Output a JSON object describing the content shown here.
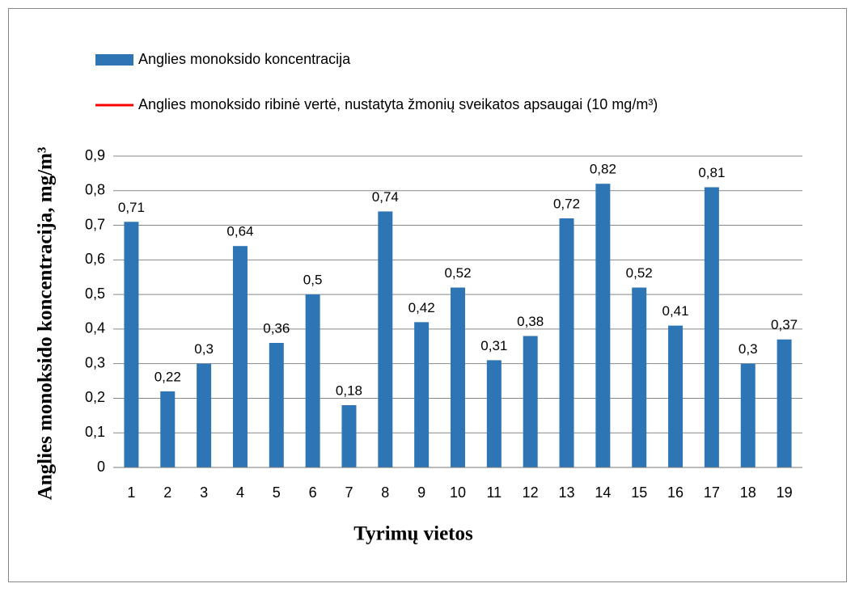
{
  "chart_data": {
    "type": "bar",
    "xlabel": "Tyrimų vietos",
    "ylabel": "Anglies monoksido koncentracija,  mg/m³",
    "categories": [
      "1",
      "2",
      "3",
      "4",
      "5",
      "6",
      "7",
      "8",
      "9",
      "10",
      "11",
      "12",
      "13",
      "14",
      "15",
      "16",
      "17",
      "18",
      "19"
    ],
    "series": [
      {
        "name": "Anglies monoksido koncentracija",
        "color": "#2e75b6",
        "values": [
          0.71,
          0.22,
          0.3,
          0.64,
          0.36,
          0.5,
          0.18,
          0.74,
          0.42,
          0.52,
          0.31,
          0.38,
          0.72,
          0.82,
          0.52,
          0.41,
          0.81,
          0.3,
          0.37
        ],
        "value_labels": [
          "0,71",
          "0,22",
          "0,3",
          "0,64",
          "0,36",
          "0,5",
          "0,18",
          "0,74",
          "0,42",
          "0,52",
          "0,31",
          "0,38",
          "0,72",
          "0,82",
          "0,52",
          "0,41",
          "0,81",
          "0,3",
          "0,37"
        ]
      },
      {
        "name": "Anglies monoksido ribinė vertė, nustatyta žmonių sveikatos apsaugai (10 mg/m³)",
        "color": "#ff0000",
        "type": "line"
      }
    ],
    "ylim": [
      0,
      0.9
    ],
    "yticks": [
      0,
      {
        "value": 0.1,
        "label": "0,1"
      },
      {
        "value": 0.2,
        "label": "0,2"
      },
      {
        "value": 0.3,
        "label": "0,3"
      },
      {
        "value": 0.4,
        "label": "0,4"
      },
      {
        "value": 0.5,
        "label": "0,5"
      },
      {
        "value": 0.6,
        "label": "0,6"
      },
      {
        "value": 0.7,
        "label": "0,7"
      },
      {
        "value": 0.8,
        "label": "0,8"
      },
      {
        "value": 0.9,
        "label": "0,9"
      }
    ],
    "grid": true,
    "legend": "top"
  }
}
